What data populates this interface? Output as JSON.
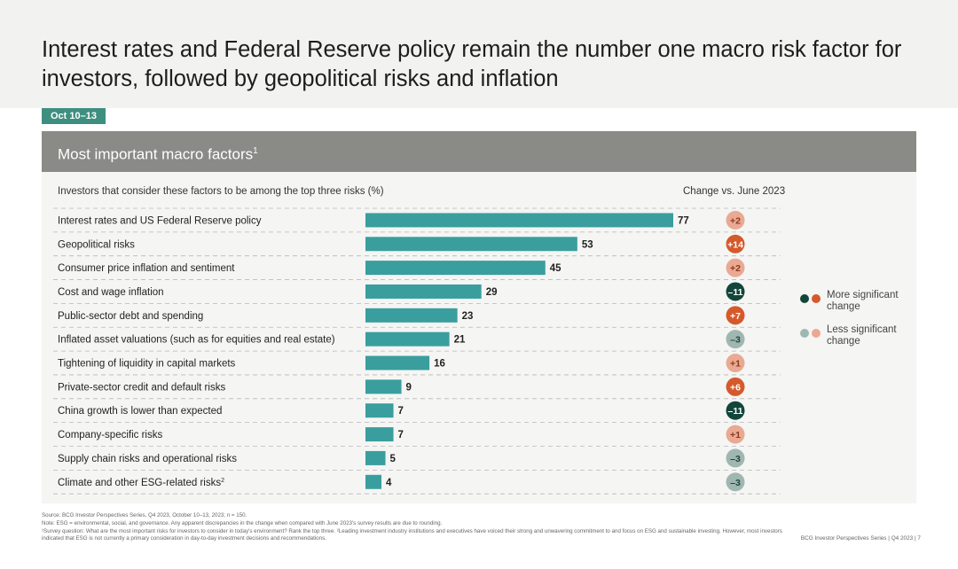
{
  "headline": "Interest rates and Federal Reserve policy remain the number one macro risk factor for investors, followed by geopolitical risks and inflation",
  "date_tag": "Oct 10–13",
  "panel": {
    "title": "Most important macro factors",
    "title_sup": "1",
    "subhead_left": "Investors that consider these factors to be among the top three risks (%)",
    "subhead_right": "Change vs. June 2023"
  },
  "colors": {
    "bar": "#3a9e9e",
    "more_positive": "#d55a2b",
    "more_negative": "#12463a",
    "less_positive": "#eaa993",
    "less_negative": "#9fb7b0"
  },
  "chart_data": {
    "type": "bar",
    "orientation": "horizontal",
    "categories": [
      "Interest rates and US Federal Reserve policy",
      "Geopolitical risks",
      "Consumer price inflation and sentiment",
      "Cost and wage inflation",
      "Public-sector debt and spending",
      "Inflated asset valuations (such as for equities and real estate)",
      "Tightening of liquidity in capital markets",
      "Private-sector credit and default risks",
      "China growth is lower than expected",
      "Company-specific risks",
      "Supply chain risks and operational risks",
      "Climate and other ESG-related risks"
    ],
    "category_sup": [
      "",
      "",
      "",
      "",
      "",
      "",
      "",
      "",
      "",
      "",
      "",
      "2"
    ],
    "values": [
      77,
      53,
      45,
      29,
      23,
      21,
      16,
      9,
      7,
      7,
      5,
      4
    ],
    "change_labels": [
      "+2",
      "+14",
      "+2",
      "–11",
      "+7",
      "–3",
      "+1",
      "+6",
      "–11",
      "+1",
      "–3",
      "–3"
    ],
    "change_values": [
      2,
      14,
      2,
      -11,
      7,
      -3,
      1,
      6,
      -11,
      1,
      -3,
      -3
    ],
    "change_significant": [
      false,
      true,
      false,
      true,
      true,
      false,
      false,
      true,
      true,
      false,
      false,
      false
    ],
    "xlim": [
      0,
      77
    ]
  },
  "legend": [
    {
      "label": "More significant change",
      "colors": [
        "#12463a",
        "#d55a2b"
      ]
    },
    {
      "label": "Less significant change",
      "colors": [
        "#9fb7b0",
        "#eaa993"
      ]
    }
  ],
  "footer": {
    "source": "Source: BCG Investor Perspectives Series, Q4 2023, October 10–13, 2023; n = 150.",
    "note": "Note: ESG = environmental, social, and governance. Any apparent discrepancies in the change when compared with June 2023's survey results are due to rounding.",
    "footnote": "¹Survey question: What are the most important risks for investors to consider in today's environment? Rank the top three. ²Leading investment industry institutions and executives have voiced their strong and unwavering commitment to and focus on ESG and sustainable investing. However, most investors indicated that ESG is not currently a primary consideration in day-to-day investment decisions and recommendations."
  },
  "page_info": "BCG Investor Perspectives Series | Q4 2023 | 7"
}
